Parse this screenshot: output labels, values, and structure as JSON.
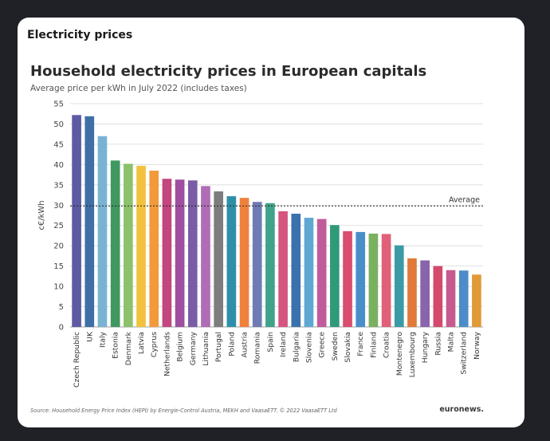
{
  "post": {
    "title": "Electricity prices"
  },
  "chart_data": {
    "type": "bar",
    "title": "Household electricity prices in European capitals",
    "subtitle": "Average price per kWh in July 2022 (includes taxes)",
    "ylabel": "c€/kWh",
    "xlabel": "",
    "ylim": [
      0,
      55
    ],
    "yticks": [
      0,
      5,
      10,
      15,
      20,
      25,
      30,
      35,
      40,
      45,
      50,
      55
    ],
    "grid": true,
    "reference_line": {
      "label": "Average",
      "value": 29.8
    },
    "categories": [
      "Czech Republic",
      "UK",
      "Italy",
      "Estonia",
      "Denmark",
      "Latvia",
      "Cyprus",
      "Netherlands",
      "Belgium",
      "Germany",
      "Lithuania",
      "Portugal",
      "Poland",
      "Austria",
      "Romania",
      "Spain",
      "Ireland",
      "Bulgaria",
      "Slovenia",
      "Greece",
      "Sweden",
      "Slovakia",
      "France",
      "Finland",
      "Croatia",
      "Montenegro",
      "Luxembourg",
      "Hungary",
      "Russia",
      "Malta",
      "Switzerland",
      "Norway"
    ],
    "values": [
      52.2,
      51.9,
      47.0,
      41.0,
      40.2,
      39.7,
      38.5,
      36.5,
      36.3,
      36.1,
      34.7,
      33.4,
      32.2,
      31.8,
      30.8,
      30.5,
      28.5,
      27.9,
      26.9,
      26.6,
      25.1,
      23.6,
      23.4,
      23.0,
      22.9,
      20.1,
      16.9,
      16.4,
      15.0,
      14.0,
      13.9,
      12.9
    ],
    "colors": [
      "#5e5aa3",
      "#3f6fa6",
      "#79b3d4",
      "#3f9860",
      "#8dc16b",
      "#f2c23e",
      "#f29a3b",
      "#c2477e",
      "#9e4fa0",
      "#7a5ca6",
      "#b06cb4",
      "#7d7d7d",
      "#2f8fa8",
      "#f0813c",
      "#6f7bb4",
      "#3fa38a",
      "#d4557f",
      "#3b72ad",
      "#5fa8d3",
      "#c15c9b",
      "#2f9a7a",
      "#d94d6f",
      "#4a8ec9",
      "#7bb05f",
      "#e0607a",
      "#3a9ba5",
      "#e07a3a",
      "#8a63ad",
      "#d34a6c",
      "#c65a8e",
      "#4d8cc8",
      "#e09a36"
    ],
    "source": "Source: Household Energy Price Index (HEPI) by Energie-Control Austria, MEKH and VaasaETT. © 2022 VaasaETT Ltd",
    "brand": "euronews."
  }
}
